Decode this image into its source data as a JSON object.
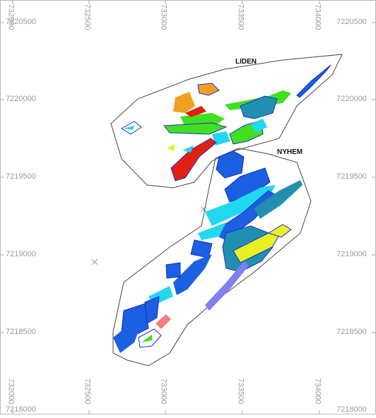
{
  "map": {
    "zones": [
      "LIDEN",
      "NYHEM"
    ],
    "x_ticks": [
      "732000",
      "732500",
      "733000",
      "733500",
      "734000"
    ],
    "y_ticks_left": [
      "7220500",
      "7220000",
      "7219500",
      "7219000",
      "7218500",
      "7218000"
    ],
    "y_ticks_right": [
      "7220500",
      "7220000",
      "7219500",
      "7219000",
      "7218500",
      "7218000"
    ],
    "colors": {
      "boundary": "#444444",
      "orebody_outline": "#1a2ccc",
      "red": "#e02010",
      "orange": "#f0a020",
      "green": "#40e020",
      "cyan": "#20d8f0",
      "blue": "#1a60e0",
      "teal": "#2090b0",
      "yellow": "#e8f020",
      "lavender": "#8080f0",
      "pink": "#f08080"
    }
  }
}
